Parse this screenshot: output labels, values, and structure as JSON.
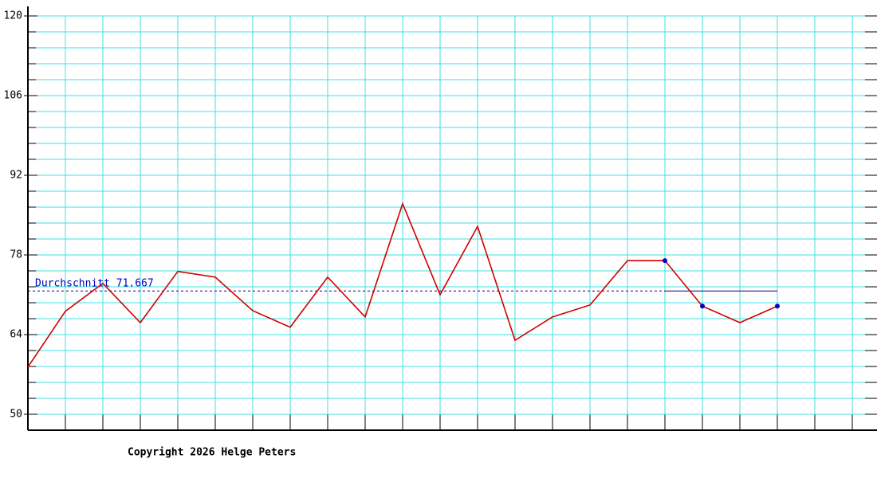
{
  "chart_data": {
    "type": "line",
    "values": [
      58.3,
      68.1,
      73,
      66.1,
      75.1,
      74.1,
      68.2,
      65.3,
      74.1,
      67.1,
      87,
      71,
      83,
      63,
      67.1,
      69.2,
      77,
      77,
      69,
      66.1,
      69
    ],
    "color": "#d00000",
    "marker_color": "#0000c0",
    "marker_indices": [
      17,
      18,
      20
    ],
    "ylim": [
      47.2,
      120
    ],
    "yticks": [
      50,
      64,
      78,
      92,
      106,
      120
    ],
    "grid": true,
    "grid_color": "#40e0e0",
    "average": {
      "value": 71.667,
      "label": "Durchschnitt 71.667"
    },
    "footer": "Copyright 2026 Helge Peters"
  }
}
